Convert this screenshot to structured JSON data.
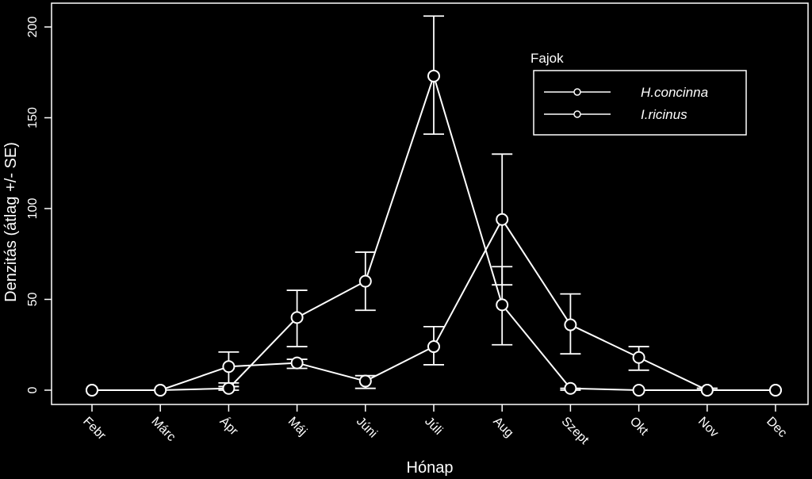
{
  "chart_data": {
    "type": "line",
    "xlabel": "Hónap",
    "ylabel": "Denzitás (átlag +/- SE)",
    "categories": [
      "Febr",
      "Márc",
      "Ápr",
      "Máj",
      "Júni",
      "Júli",
      "Aug",
      "Szept",
      "Okt",
      "Nov",
      "Dec"
    ],
    "ylim": [
      0,
      200
    ],
    "yticks": [
      0,
      50,
      100,
      150,
      200
    ],
    "legend": {
      "title": "Fajok",
      "position": "top-right"
    },
    "series": [
      {
        "name": "H.concinna",
        "values": [
          0,
          0,
          1,
          40,
          60,
          173,
          47,
          1,
          0,
          0,
          0
        ],
        "se_low": [
          0,
          0,
          0,
          24,
          44,
          141,
          25,
          0,
          0,
          0,
          0
        ],
        "se_high": [
          0,
          0,
          2,
          55,
          76,
          206,
          68,
          1,
          0,
          1,
          0
        ]
      },
      {
        "name": "I.ricinus",
        "values": [
          0,
          0,
          13,
          15,
          5,
          24,
          94,
          36,
          18,
          0,
          0
        ],
        "se_low": [
          0,
          0,
          4,
          12,
          1,
          14,
          58,
          20,
          11,
          0,
          0
        ],
        "se_high": [
          0,
          0,
          21,
          17,
          8,
          35,
          130,
          53,
          24,
          1,
          0
        ]
      }
    ]
  }
}
